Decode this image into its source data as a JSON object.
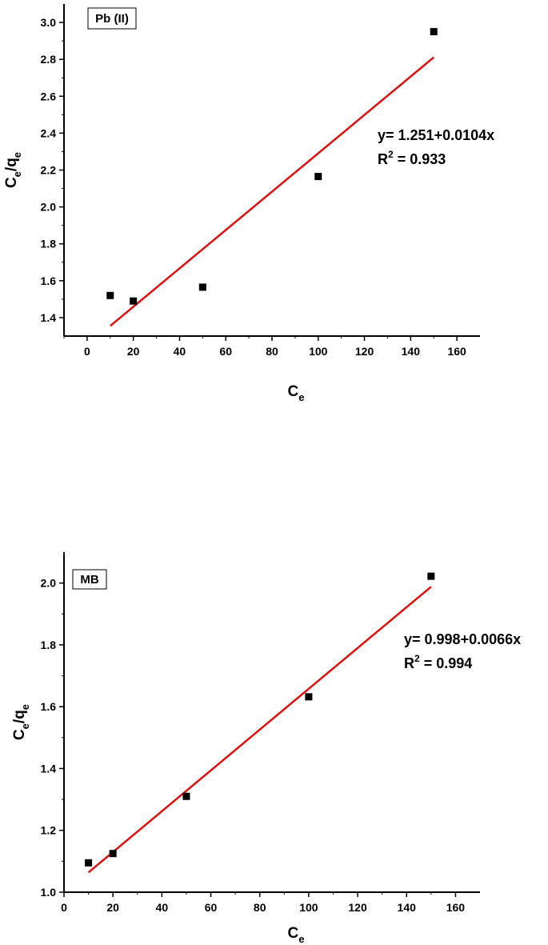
{
  "chart_data": [
    {
      "type": "scatter",
      "label": "Pb (II)",
      "xlabel_main": "C",
      "xlabel_sub": "e",
      "ylabel_parts": [
        "C",
        "e",
        "/q",
        "e"
      ],
      "xlim": [
        -10,
        170
      ],
      "ylim": [
        1.3,
        3.1
      ],
      "xticks": [
        0,
        20,
        40,
        60,
        80,
        100,
        120,
        140,
        160
      ],
      "yticks": [
        1.4,
        1.6,
        1.8,
        2.0,
        2.2,
        2.4,
        2.6,
        2.8,
        3.0
      ],
      "series": [
        {
          "values": [
            [
              10,
              1.52
            ],
            [
              20,
              1.49
            ],
            [
              50,
              1.565
            ],
            [
              100,
              2.165
            ],
            [
              150,
              2.95
            ]
          ],
          "color": "#000000"
        }
      ],
      "fit": {
        "intercept": 1.251,
        "slope": 0.0104,
        "x_range": [
          10,
          150
        ],
        "color": "#e01010"
      },
      "equation": "y= 1.251+0.0104x",
      "r2_prefix": "R",
      "r2_sup": "2",
      "r2_value": " = 0.933"
    },
    {
      "type": "scatter",
      "label": "MB",
      "xlabel_main": "C",
      "xlabel_sub": "e",
      "ylabel_parts": [
        "C",
        "e",
        "/q",
        "e"
      ],
      "xlim": [
        0,
        170
      ],
      "ylim": [
        1.0,
        2.1
      ],
      "xticks": [
        0,
        20,
        40,
        60,
        80,
        100,
        120,
        140,
        160
      ],
      "yticks": [
        1.0,
        1.2,
        1.4,
        1.6,
        1.8,
        2.0
      ],
      "series": [
        {
          "values": [
            [
              10,
              1.095
            ],
            [
              20,
              1.125
            ],
            [
              50,
              1.31
            ],
            [
              100,
              1.632
            ],
            [
              150,
              2.022
            ]
          ],
          "color": "#000000"
        }
      ],
      "fit": {
        "intercept": 0.998,
        "slope": 0.0066,
        "x_range": [
          10,
          150
        ],
        "color": "#e01010"
      },
      "equation": "y= 0.998+0.0066x",
      "r2_prefix": "R",
      "r2_sup": "2",
      "r2_value": " = 0.994"
    }
  ]
}
